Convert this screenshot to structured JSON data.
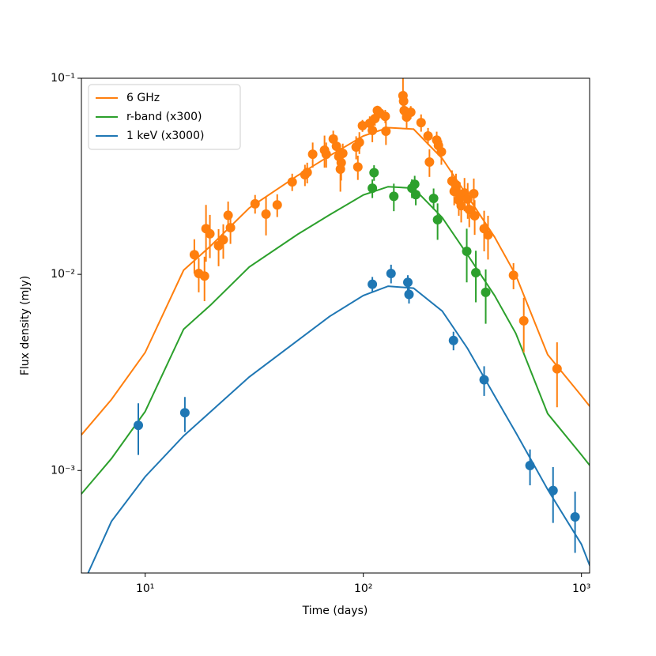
{
  "chart_data": {
    "type": "errorbar",
    "x_label": "Time (days)",
    "y_label": "Flux density (mJy)",
    "x_scale": "log",
    "y_scale": "log",
    "xlim": [
      5.1,
      1090
    ],
    "ylim": [
      0.0003,
      0.1
    ],
    "xticks": [
      {
        "value": 10,
        "label": "10¹"
      },
      {
        "value": 100,
        "label": "10²"
      },
      {
        "value": 1000,
        "label": "10³"
      }
    ],
    "yticks": [
      {
        "value": 0.001,
        "label": "10⁻³"
      },
      {
        "value": 0.01,
        "label": "10⁻²"
      },
      {
        "value": 0.1,
        "label": "10⁻¹"
      }
    ],
    "legend": "upper left",
    "model_x": [
      5,
      7,
      10,
      15,
      20,
      30,
      50,
      70,
      100,
      130,
      170,
      230,
      300,
      400,
      500,
      700,
      1000,
      1100
    ],
    "series": [
      {
        "name": "6 GHz",
        "color": "#ff7f0e",
        "x": [
          16.8,
          17.6,
          18.7,
          19.0,
          19.8,
          21.7,
          22.8,
          24.0,
          24.6,
          31.9,
          35.8,
          40.3,
          47.2,
          54.0,
          55.3,
          58.6,
          66.4,
          67.6,
          72.8,
          75.3,
          77.2,
          78.5,
          79.2,
          80.5,
          92.7,
          94.4,
          95.9,
          99.1,
          107,
          110,
          113,
          116,
          119,
          126,
          127,
          152,
          153,
          154,
          158,
          165,
          184,
          198,
          201,
          217,
          221,
          228,
          255,
          261,
          266,
          274,
          277,
          281,
          291,
          301,
          306,
          321,
          324,
          358,
          373,
          488,
          544,
          773
        ],
        "values": [
          0.0126,
          0.0101,
          0.0098,
          0.0171,
          0.0161,
          0.014,
          0.015,
          0.02,
          0.0173,
          0.0229,
          0.0203,
          0.0226,
          0.0296,
          0.0322,
          0.0331,
          0.041,
          0.043,
          0.041,
          0.049,
          0.045,
          0.0399,
          0.0344,
          0.0371,
          0.0414,
          0.0446,
          0.0353,
          0.0471,
          0.0573,
          0.0589,
          0.0542,
          0.0623,
          0.0684,
          0.0665,
          0.064,
          0.0537,
          0.0815,
          0.0764,
          0.0684,
          0.0634,
          0.0671,
          0.0594,
          0.0508,
          0.0374,
          0.0484,
          0.0454,
          0.0422,
          0.0299,
          0.0265,
          0.0286,
          0.0239,
          0.0255,
          0.0224,
          0.026,
          0.0242,
          0.0214,
          0.0258,
          0.0199,
          0.0171,
          0.0159,
          0.0099,
          0.0058,
          0.0033
        ],
        "errors": [
          0.0025,
          0.002,
          0.0025,
          0.0055,
          0.004,
          0.003,
          0.003,
          0.0035,
          0.003,
          0.0025,
          0.0045,
          0.003,
          0.003,
          0.004,
          0.004,
          0.006,
          0.008,
          0.006,
          0.005,
          0.006,
          0.006,
          0.008,
          0.007,
          0.005,
          0.006,
          0.005,
          0.006,
          0.004,
          0.005,
          0.007,
          0.005,
          0.004,
          0.004,
          0.005,
          0.008,
          0.02,
          0.01,
          0.007,
          0.008,
          0.005,
          0.006,
          0.005,
          0.006,
          0.005,
          0.005,
          0.006,
          0.004,
          0.004,
          0.004,
          0.004,
          0.004,
          0.004,
          0.005,
          0.005,
          0.004,
          0.005,
          0.004,
          0.004,
          0.004,
          0.0015,
          0.0018,
          0.0012
        ],
        "model_values": [
          0.00148,
          0.0023,
          0.004,
          0.0105,
          0.014,
          0.0218,
          0.0319,
          0.0402,
          0.0508,
          0.056,
          0.055,
          0.039,
          0.0251,
          0.0155,
          0.0099,
          0.0039,
          0.0024,
          0.0021
        ]
      },
      {
        "name": "r-band (x300)",
        "color": "#2ca02c",
        "x": [
          110,
          112,
          138,
          167,
          172,
          174,
          210,
          219,
          298,
          328,
          364
        ],
        "values": [
          0.0275,
          0.033,
          0.025,
          0.0275,
          0.0288,
          0.0255,
          0.0244,
          0.019,
          0.0131,
          0.0102,
          0.0081
        ],
        "errors": [
          0.003,
          0.003,
          0.004,
          0.003,
          0.003,
          0.003,
          0.003,
          0.004,
          0.004,
          0.003,
          0.0025
        ],
        "model_values": [
          0.00074,
          0.00115,
          0.002,
          0.00525,
          0.007,
          0.0109,
          0.016,
          0.0201,
          0.0254,
          0.028,
          0.0275,
          0.0195,
          0.0126,
          0.0078,
          0.005,
          0.00195,
          0.0012,
          0.00105
        ]
      },
      {
        "name": "1 keV (x3000)",
        "color": "#1f77b4",
        "x": [
          9.3,
          15.2,
          110,
          134,
          160,
          162,
          259,
          358,
          581,
          741,
          935
        ],
        "values": [
          0.0017,
          0.00197,
          0.0089,
          0.0101,
          0.0091,
          0.0079,
          0.0046,
          0.0029,
          0.00106,
          0.00079,
          0.00058
        ],
        "errors": [
          0.0005,
          0.0004,
          0.0008,
          0.0011,
          0.0008,
          0.0008,
          0.0005,
          0.0005,
          0.00022,
          0.00025,
          0.0002
        ],
        "model_values": [
          0.00024,
          0.00055,
          0.00093,
          0.0015,
          0.002,
          0.003,
          0.0046,
          0.0061,
          0.0078,
          0.0087,
          0.0085,
          0.0065,
          0.0042,
          0.0024,
          0.00156,
          0.0008,
          0.00042,
          0.00032
        ]
      }
    ]
  }
}
